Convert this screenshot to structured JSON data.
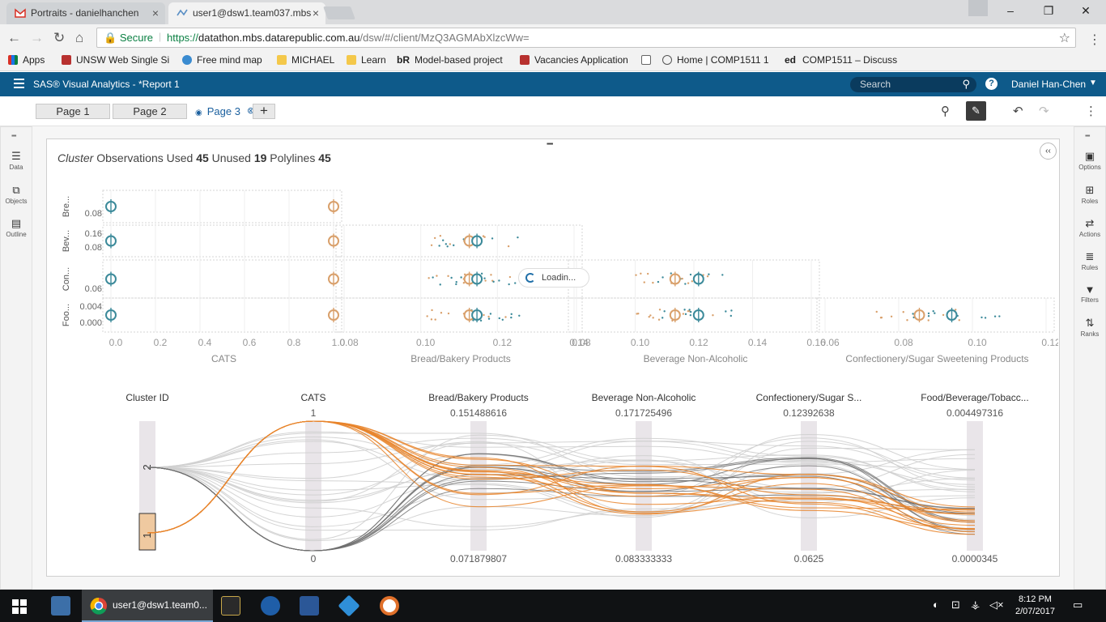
{
  "browser": {
    "tabs": [
      {
        "title": "Portraits - danielhanchen"
      },
      {
        "title": "user1@dsw1.team037.mbs"
      }
    ],
    "secure_label": "Secure",
    "url_scheme": "https://",
    "url_host": "datathon.mbs.datarepublic.com.au",
    "url_path": "/dsw/#/client/MzQ3AGMAbXlzcWw=",
    "bookmarks": [
      "Apps",
      "UNSW Web Single Si",
      "Free mind map",
      "MICHAEL",
      "Learn",
      "Model-based project",
      "Vacancies Application",
      "",
      "Home | COMP1511 1",
      "COMP1511 – Discuss"
    ],
    "bookmark_prefix_br": "bR",
    "bookmark_prefix_ed": "ed"
  },
  "sas": {
    "app_title": "SAS® Visual Analytics - *Report 1",
    "search_placeholder": "Search",
    "user_name": "Daniel Han-Chen",
    "pages": [
      "Page 1",
      "Page 2",
      "Page 3"
    ],
    "left_rail": [
      "Data",
      "Objects",
      "Outline"
    ],
    "right_rail": [
      "Options",
      "Roles",
      "Actions",
      "Rules",
      "Filters",
      "Ranks"
    ]
  },
  "report": {
    "obs": {
      "cluster_label": "Cluster",
      "used_label": "Observations Used",
      "used": "45",
      "unused_label": "Unused",
      "unused": "19",
      "polylines_label": "Polylines",
      "polylines": "45"
    },
    "loading_text": "Loadin..."
  },
  "chart_data": [
    {
      "type": "scatter",
      "name": "cluster-matrix",
      "rows": [
        {
          "label": "Bre...",
          "ticks": [
            "0.08"
          ]
        },
        {
          "label": "Bev...",
          "ticks": [
            "0.16",
            "0.08"
          ]
        },
        {
          "label": "Con...",
          "ticks": [
            "0.06"
          ]
        },
        {
          "label": "Foo...",
          "ticks": [
            "0.004",
            "0.000"
          ]
        }
      ],
      "columns": [
        {
          "label": "CATS",
          "ticks": [
            "0.0",
            "0.2",
            "0.4",
            "0.6",
            "0.8",
            "1.0"
          ],
          "range": [
            0,
            1
          ]
        },
        {
          "label": "Bread/Bakery Products",
          "ticks": [
            "0.08",
            "0.10",
            "0.12",
            "0.14"
          ],
          "range": [
            0.07,
            0.16
          ]
        },
        {
          "label": "Beverage Non-Alcoholic",
          "ticks": [
            "0.08",
            "0.10",
            "0.12",
            "0.14",
            "0.16"
          ],
          "range": [
            0.075,
            0.175
          ]
        },
        {
          "label": "Confectionery/Sugar Sweetening Products",
          "ticks": [
            "0.06",
            "0.08",
            "0.10",
            "0.12"
          ],
          "range": [
            0.055,
            0.13
          ]
        }
      ],
      "clusters": [
        {
          "id": "1",
          "color": "#d9a06b",
          "centroids": {
            "CATS": 1.0,
            "Bread/Bakery Products": 0.119,
            "Beverage Non-Alcoholic": 0.117,
            "Confectionery/Sugar Sweetening Products": 0.087
          }
        },
        {
          "id": "2",
          "color": "#3c8a9a",
          "centroids": {
            "CATS": 0.0,
            "Bread/Bakery Products": 0.122,
            "Beverage Non-Alcoholic": 0.127,
            "Confectionery/Sugar Sweetening Products": 0.098
          }
        }
      ]
    },
    {
      "type": "parallel-coordinates",
      "name": "cluster-parallel",
      "axes": [
        {
          "label": "Cluster ID",
          "top": "",
          "bottom": ""
        },
        {
          "label": "CATS",
          "top": "1",
          "bottom": "0"
        },
        {
          "label": "Bread/Bakery Products",
          "top": "0.151488616",
          "bottom": "0.071879807"
        },
        {
          "label": "Beverage Non-Alcoholic",
          "top": "0.171725496",
          "bottom": "0.083333333"
        },
        {
          "label": "Confectionery/Sugar S...",
          "top": "0.12392638",
          "bottom": "0.0625"
        },
        {
          "label": "Food/Beverage/Tobacc...",
          "top": "0.004497316",
          "bottom": "0.0000345"
        }
      ],
      "cluster_labels": [
        "2",
        "1"
      ],
      "colors": {
        "cluster1": "#e8842a",
        "cluster2": "#6e6e6e",
        "other": "#cfcfcf"
      }
    }
  ],
  "taskbar": {
    "chrome_label": "user1@dsw1.team0...",
    "time": "8:12 PM",
    "date": "2/07/2017"
  }
}
